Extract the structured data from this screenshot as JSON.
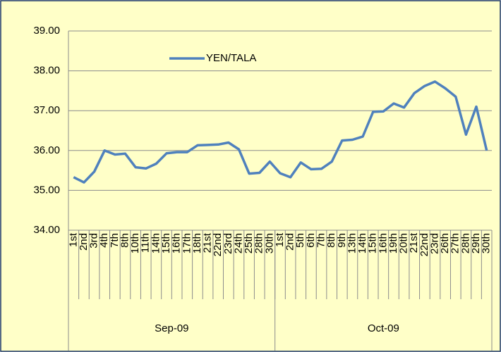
{
  "chart_data": {
    "type": "line",
    "groups": [
      {
        "name": "Sep-09",
        "categories": [
          "1st",
          "2nd",
          "3rd",
          "4th",
          "7th",
          "8th",
          "10th",
          "11th",
          "14th",
          "15th",
          "16th",
          "17th",
          "18th",
          "21st",
          "22nd",
          "23rd",
          "24th",
          "25th",
          "28th",
          "30th"
        ]
      },
      {
        "name": "Oct-09",
        "categories": [
          "1st",
          "2nd",
          "5th",
          "6th",
          "7th",
          "8th",
          "9th",
          "13th",
          "14th",
          "15th",
          "16th",
          "19th",
          "20th",
          "21st",
          "22nd",
          "23rd",
          "26th",
          "27th",
          "28th",
          "29th",
          "30th"
        ]
      }
    ],
    "series": [
      {
        "name": "YEN/TALA",
        "color": "#4f81bd",
        "values": [
          35.33,
          35.2,
          35.47,
          36.0,
          35.9,
          35.92,
          35.58,
          35.55,
          35.67,
          35.93,
          35.96,
          35.96,
          36.13,
          36.14,
          36.15,
          36.2,
          36.03,
          35.42,
          35.44,
          35.72,
          35.43,
          35.33,
          35.7,
          35.53,
          35.54,
          35.72,
          36.25,
          36.27,
          36.35,
          36.97,
          36.98,
          37.18,
          37.08,
          37.44,
          37.62,
          37.73,
          37.56,
          37.35,
          36.4,
          37.1,
          36.0
        ]
      }
    ],
    "ylim": [
      34,
      39
    ],
    "yticks": [
      {
        "value": 34,
        "label": "34.00"
      },
      {
        "value": 35,
        "label": "35.00"
      },
      {
        "value": 36,
        "label": "36.00"
      },
      {
        "value": 37,
        "label": "37.00"
      },
      {
        "value": 38,
        "label": "38.00"
      },
      {
        "value": 39,
        "label": "39.00"
      }
    ],
    "grid": true
  }
}
